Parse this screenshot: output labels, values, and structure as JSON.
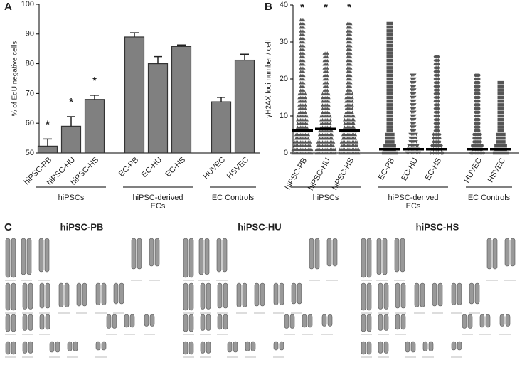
{
  "panel_labels": [
    "A",
    "B",
    "C"
  ],
  "chart_data": [
    {
      "type": "bar",
      "ylabel": "% of EdU negative cells",
      "categories": [
        "hiPSC-PB",
        "hiPSC-HU",
        "hiPSC-HS",
        "EC-PB",
        "EC-HU",
        "EC-HS",
        "HUVEC",
        "HSVEC"
      ],
      "values": [
        52.3,
        59,
        68,
        89,
        80,
        85.8,
        67.2,
        81.2
      ],
      "errors": [
        2.4,
        3.2,
        1.4,
        1.4,
        2.4,
        0.5,
        1.5,
        2
      ],
      "annotations": [
        "*",
        "*",
        "*"
      ],
      "color": "#808080",
      "ylim": [
        50,
        100
      ],
      "yticks": [
        50,
        60,
        70,
        80,
        90,
        100
      ],
      "groups": [
        [
          "hiPSCs"
        ],
        [
          "hiPSC-derived",
          "ECs"
        ],
        [
          "EC Controls"
        ]
      ]
    },
    {
      "type": "dot",
      "ylabel": "γH2AX foci number / cell",
      "categories": [
        "hiPSC-PB",
        "hiPSC-HU",
        "hiPSC-HS",
        "EC-PB",
        "EC-HU",
        "EC-HS",
        "HUVEC",
        "HSVEC"
      ],
      "medians": [
        6,
        6.5,
        6,
        1,
        1,
        1,
        1,
        1
      ],
      "max": [
        36,
        27,
        35,
        35,
        21,
        26,
        21,
        19
      ],
      "annotations": [
        "*",
        "*",
        "*"
      ],
      "color": "#555555",
      "ylim": [
        0,
        40
      ],
      "yticks": [
        0,
        10,
        20,
        30,
        40
      ],
      "groups": [
        [
          "hiPSCs"
        ],
        [
          "hiPSC-derived",
          "ECs"
        ],
        [
          "EC Controls"
        ]
      ]
    }
  ],
  "karyotypes": {
    "titles": [
      "hiPSC-PB",
      "hiPSC-HU",
      "hiPSC-HS"
    ]
  }
}
